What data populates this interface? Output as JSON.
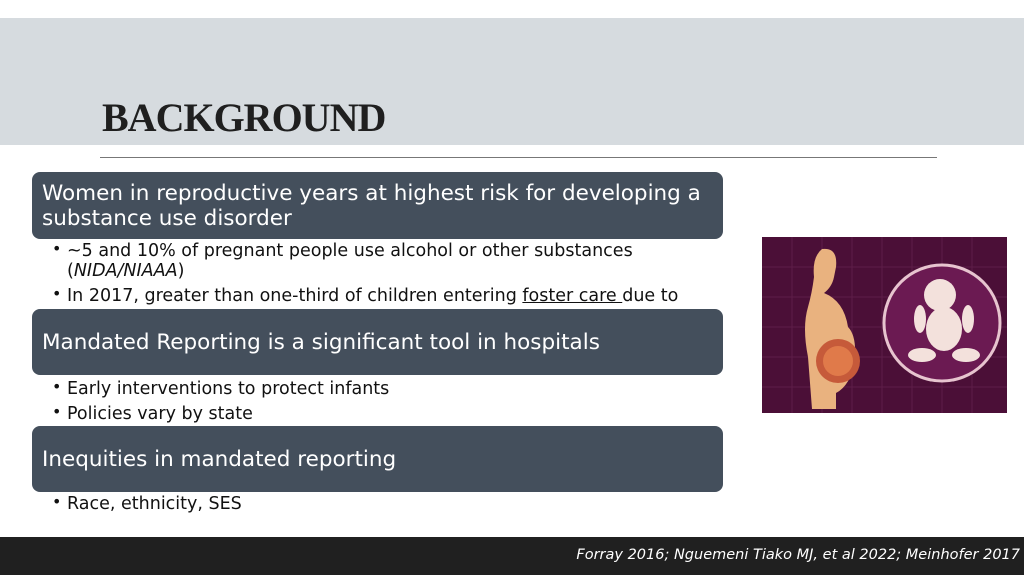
{
  "header": {
    "title": "BACKGROUND"
  },
  "sections": [
    {
      "heading": "Women in reproductive years at highest risk for developing a substance use disorder",
      "bullets": [
        {
          "runs": [
            {
              "text": "~5 and 10% of pregnant people use alcohol or other substances ("
            },
            {
              "text": "NIDA/NIAAA",
              "italic": true
            },
            {
              "text": ")"
            }
          ]
        },
        {
          "runs": [
            {
              "text": "In 2017, greater than one-third of children entering "
            },
            {
              "text": "foster care ",
              "underline": true
            },
            {
              "text": "due to"
            }
          ]
        }
      ]
    },
    {
      "heading": "Mandated Reporting is a significant tool in hospitals",
      "bullets": [
        {
          "runs": [
            {
              "text": "Early interventions to protect infants"
            }
          ]
        },
        {
          "runs": [
            {
              "text": "Policies vary by state"
            }
          ]
        }
      ]
    },
    {
      "heading": "Inequities in mandated reporting",
      "bullets": [
        {
          "runs": [
            {
              "text": "Race, ethnicity, SES"
            }
          ]
        }
      ]
    }
  ],
  "footer": {
    "citation": "Forray 2016; Nguemeni Tiako MJ, et al 2022; Meinhofer 2017"
  }
}
